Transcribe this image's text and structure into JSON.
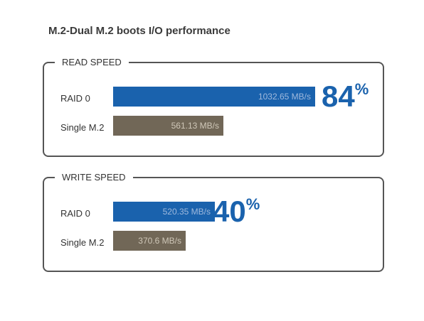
{
  "chart_data": {
    "type": "bar",
    "title": "M.2-Dual M.2 boots I/O performance",
    "unit": "MB/s",
    "groups": [
      {
        "name": "READ SPEED",
        "categories": [
          "RAID 0",
          "Single M.2"
        ],
        "values": [
          1032.65,
          561.13
        ],
        "value_labels": [
          "1032.65 MB/s",
          "561.13 MB/s"
        ],
        "improvement": "84",
        "improvement_unit": "%"
      },
      {
        "name": "WRITE SPEED",
        "categories": [
          "RAID 0",
          "Single M.2"
        ],
        "values": [
          520.35,
          370.6
        ],
        "value_labels": [
          "520.35 MB/s",
          "370.6 MB/s"
        ],
        "improvement": "40",
        "improvement_unit": "%"
      }
    ],
    "colors": {
      "raid0": "#1a62ad",
      "single": "#716757"
    },
    "xlim": [
      0,
      1100
    ]
  }
}
